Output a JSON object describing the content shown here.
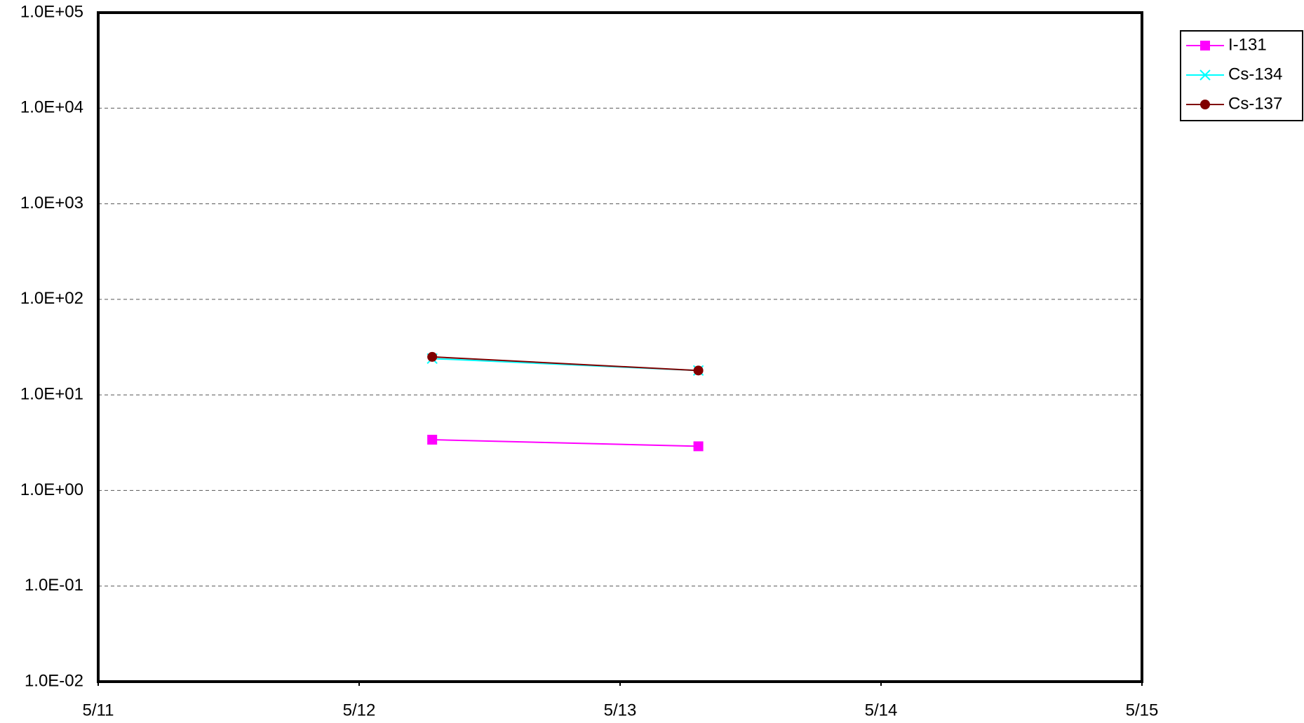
{
  "chart_data": {
    "type": "line",
    "yscale": "log",
    "grid": true,
    "legend": "right",
    "x": [
      12.28,
      13.3
    ],
    "xlim": [
      11,
      15
    ],
    "xticks": [
      {
        "value": 11,
        "label": "5/11"
      },
      {
        "value": 12,
        "label": "5/12"
      },
      {
        "value": 13,
        "label": "5/13"
      },
      {
        "value": 14,
        "label": "5/14"
      },
      {
        "value": 15,
        "label": "5/15"
      }
    ],
    "ylim": [
      0.01,
      100000
    ],
    "yticks": [
      {
        "value": 0.01,
        "label": "1.0E-02"
      },
      {
        "value": 0.1,
        "label": "1.0E-01"
      },
      {
        "value": 1,
        "label": "1.0E+00"
      },
      {
        "value": 10,
        "label": "1.0E+01"
      },
      {
        "value": 100,
        "label": "1.0E+02"
      },
      {
        "value": 1000,
        "label": "1.0E+03"
      },
      {
        "value": 10000,
        "label": "1.0E+04"
      },
      {
        "value": 100000,
        "label": "1.0E+05"
      }
    ],
    "series": [
      {
        "name": "I-131",
        "color": "#ff00ff",
        "marker": "square",
        "values": [
          3.4,
          2.9
        ]
      },
      {
        "name": "Cs-134",
        "color": "#00ffff",
        "marker": "x",
        "values": [
          24,
          18
        ]
      },
      {
        "name": "Cs-137",
        "color": "#800000",
        "marker": "circle",
        "values": [
          25,
          18
        ]
      }
    ]
  }
}
